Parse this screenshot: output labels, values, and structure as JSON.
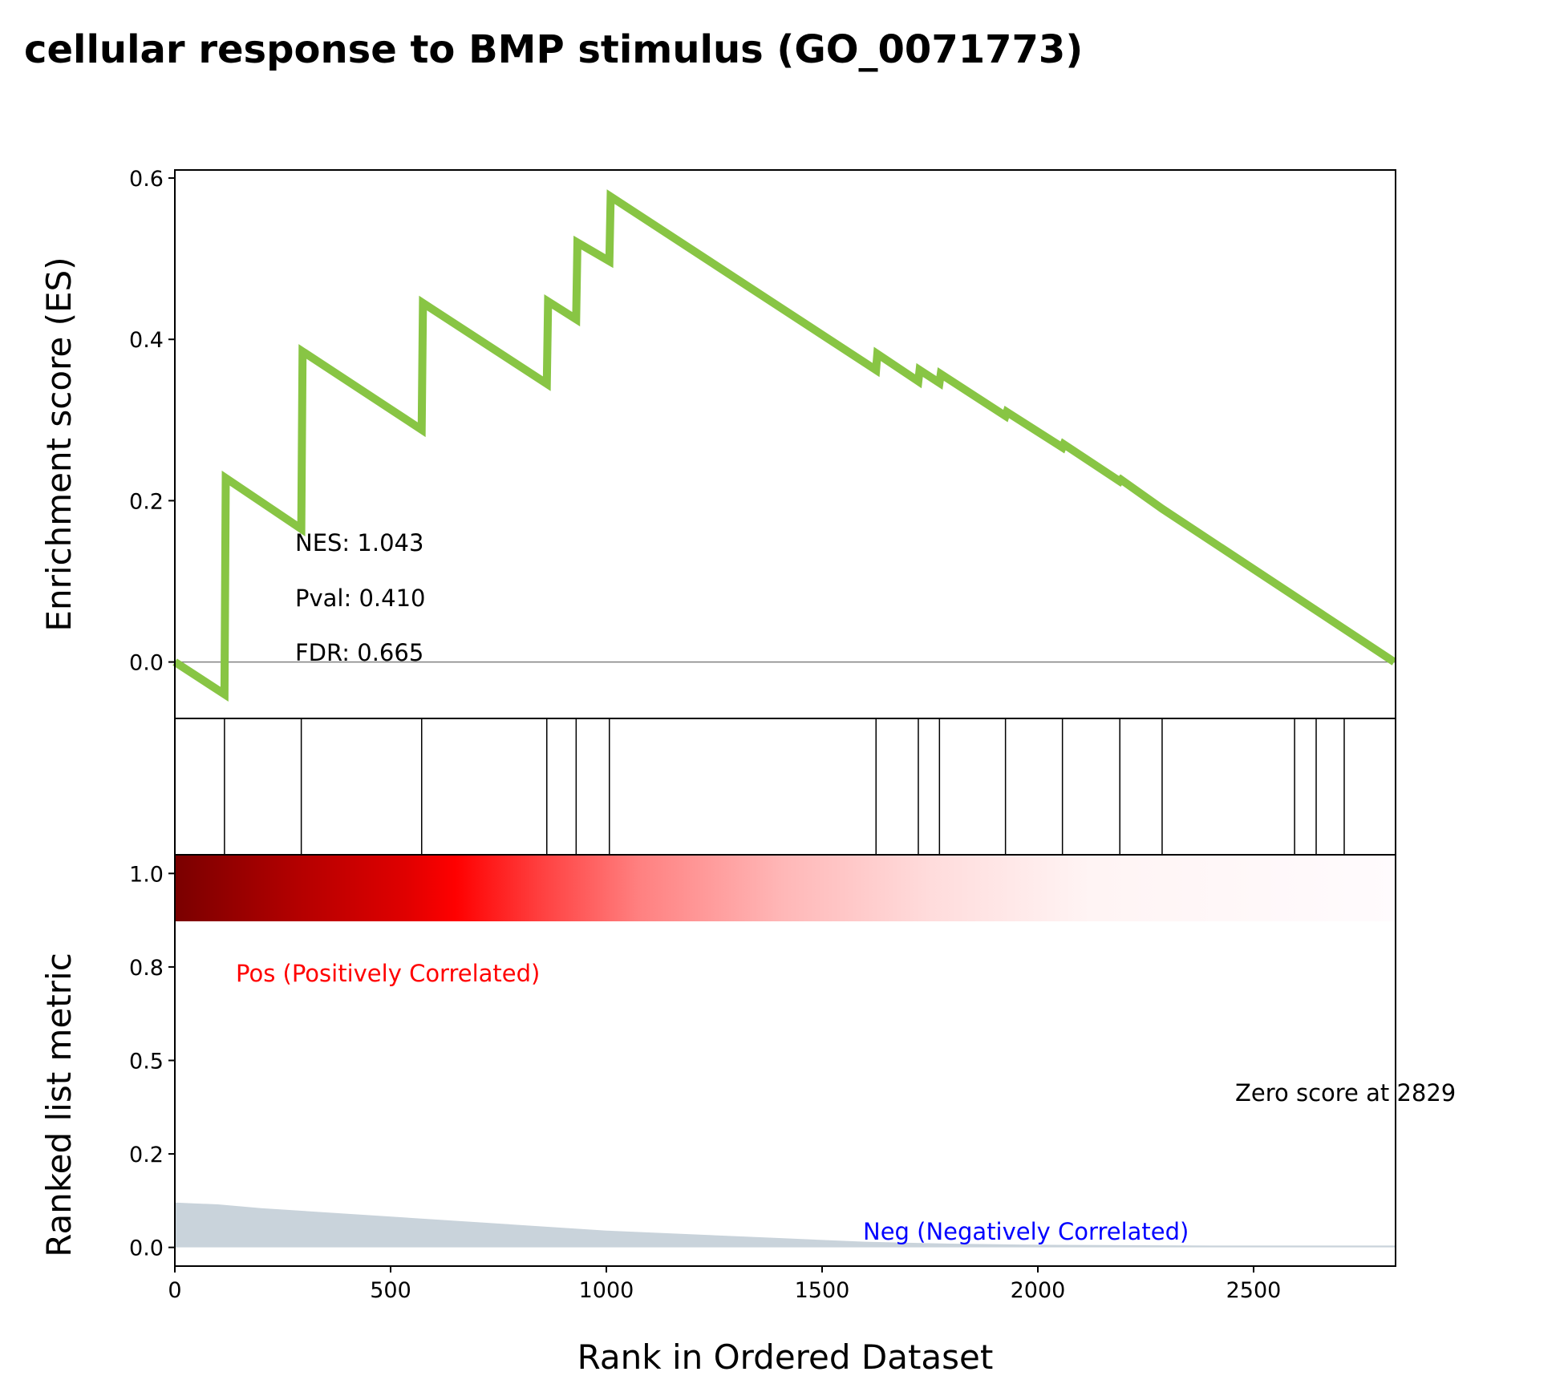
{
  "title": "cellular response to BMP stimulus (GO_0071773)",
  "colors": {
    "es_line": "#88C544",
    "hits": "#000000",
    "metric_fill": "#C9D3DB",
    "pos_label": "#FF0000",
    "neg_label": "#0000FF",
    "zero_line": "#808080"
  },
  "chart_data": [
    {
      "type": "line",
      "name": "enrichment-score",
      "ylabel": "Enrichment score (ES)",
      "xlim": [
        0,
        2829
      ],
      "ylim": [
        -0.07,
        0.61
      ],
      "yticks": [
        {
          "value": 0.0,
          "label": "0.0"
        },
        {
          "value": 0.2,
          "label": "0.2"
        },
        {
          "value": 0.4,
          "label": "0.4"
        },
        {
          "value": 0.6,
          "label": "0.6"
        }
      ],
      "points": [
        [
          0,
          0.0
        ],
        [
          115,
          -0.04
        ],
        [
          118,
          0.228
        ],
        [
          293,
          0.165
        ],
        [
          296,
          0.385
        ],
        [
          572,
          0.288
        ],
        [
          575,
          0.445
        ],
        [
          862,
          0.345
        ],
        [
          865,
          0.447
        ],
        [
          930,
          0.425
        ],
        [
          933,
          0.52
        ],
        [
          1007,
          0.497
        ],
        [
          1010,
          0.577
        ],
        [
          1625,
          0.362
        ],
        [
          1628,
          0.382
        ],
        [
          1723,
          0.348
        ],
        [
          1726,
          0.362
        ],
        [
          1772,
          0.346
        ],
        [
          1775,
          0.357
        ],
        [
          1925,
          0.305
        ],
        [
          1928,
          0.31
        ],
        [
          2057,
          0.266
        ],
        [
          2060,
          0.27
        ],
        [
          2190,
          0.224
        ],
        [
          2193,
          0.226
        ],
        [
          2288,
          0.19
        ],
        [
          2826,
          0.0
        ]
      ],
      "annotations": {
        "nes": "NES: 1.043",
        "pval": "Pval: 0.410",
        "fdr": "FDR: 0.665"
      }
    },
    {
      "type": "hits",
      "name": "gene-set-hits",
      "xlim": [
        0,
        2829
      ],
      "x": [
        115,
        293,
        572,
        862,
        930,
        1007,
        1625,
        1723,
        1772,
        1925,
        2057,
        2190,
        2288,
        2595,
        2645,
        2710
      ]
    },
    {
      "type": "heatmap",
      "name": "rank-color-bar",
      "xlim": [
        0,
        2829
      ],
      "gradient": [
        {
          "at": 0.0,
          "color": "#7A0000"
        },
        {
          "at": 0.1,
          "color": "#B30000"
        },
        {
          "at": 0.19,
          "color": "#E00000"
        },
        {
          "at": 0.23,
          "color": "#FF0000"
        },
        {
          "at": 0.3,
          "color": "#FF4040"
        },
        {
          "at": 0.38,
          "color": "#FF8080"
        },
        {
          "at": 0.5,
          "color": "#FFB8B8"
        },
        {
          "at": 0.62,
          "color": "#FFDCDC"
        },
        {
          "at": 0.75,
          "color": "#FFF4F4"
        },
        {
          "at": 1.0,
          "color": "#FFFBFD"
        }
      ]
    },
    {
      "type": "area",
      "name": "ranked-list-metric",
      "ylabel": "Ranked list metric",
      "xlabel": "Rank in Ordered Dataset",
      "xlim": [
        0,
        2829
      ],
      "ylim": [
        -0.05,
        1.05
      ],
      "xticks": [
        {
          "value": 0,
          "label": "0"
        },
        {
          "value": 500,
          "label": "500"
        },
        {
          "value": 1000,
          "label": "1000"
        },
        {
          "value": 1500,
          "label": "1500"
        },
        {
          "value": 2000,
          "label": "2000"
        },
        {
          "value": 2500,
          "label": "2500"
        }
      ],
      "yticks": [
        {
          "value": 0.0,
          "label": "0.0"
        },
        {
          "value": 0.25,
          "label": "0.2"
        },
        {
          "value": 0.5,
          "label": "0.5"
        },
        {
          "value": 0.75,
          "label": "0.8"
        },
        {
          "value": 1.0,
          "label": "1.0"
        }
      ],
      "points": [
        [
          0,
          0.12
        ],
        [
          100,
          0.115
        ],
        [
          200,
          0.105
        ],
        [
          400,
          0.09
        ],
        [
          600,
          0.075
        ],
        [
          800,
          0.06
        ],
        [
          1000,
          0.045
        ],
        [
          1200,
          0.035
        ],
        [
          1400,
          0.025
        ],
        [
          1600,
          0.015
        ],
        [
          1800,
          0.01
        ],
        [
          2000,
          0.007
        ],
        [
          2400,
          0.005
        ],
        [
          2829,
          0.005
        ]
      ],
      "annotations": {
        "pos": "Pos (Positively Correlated)",
        "neg": "Neg (Negatively Correlated)",
        "zero": "Zero score at 2829"
      }
    }
  ]
}
